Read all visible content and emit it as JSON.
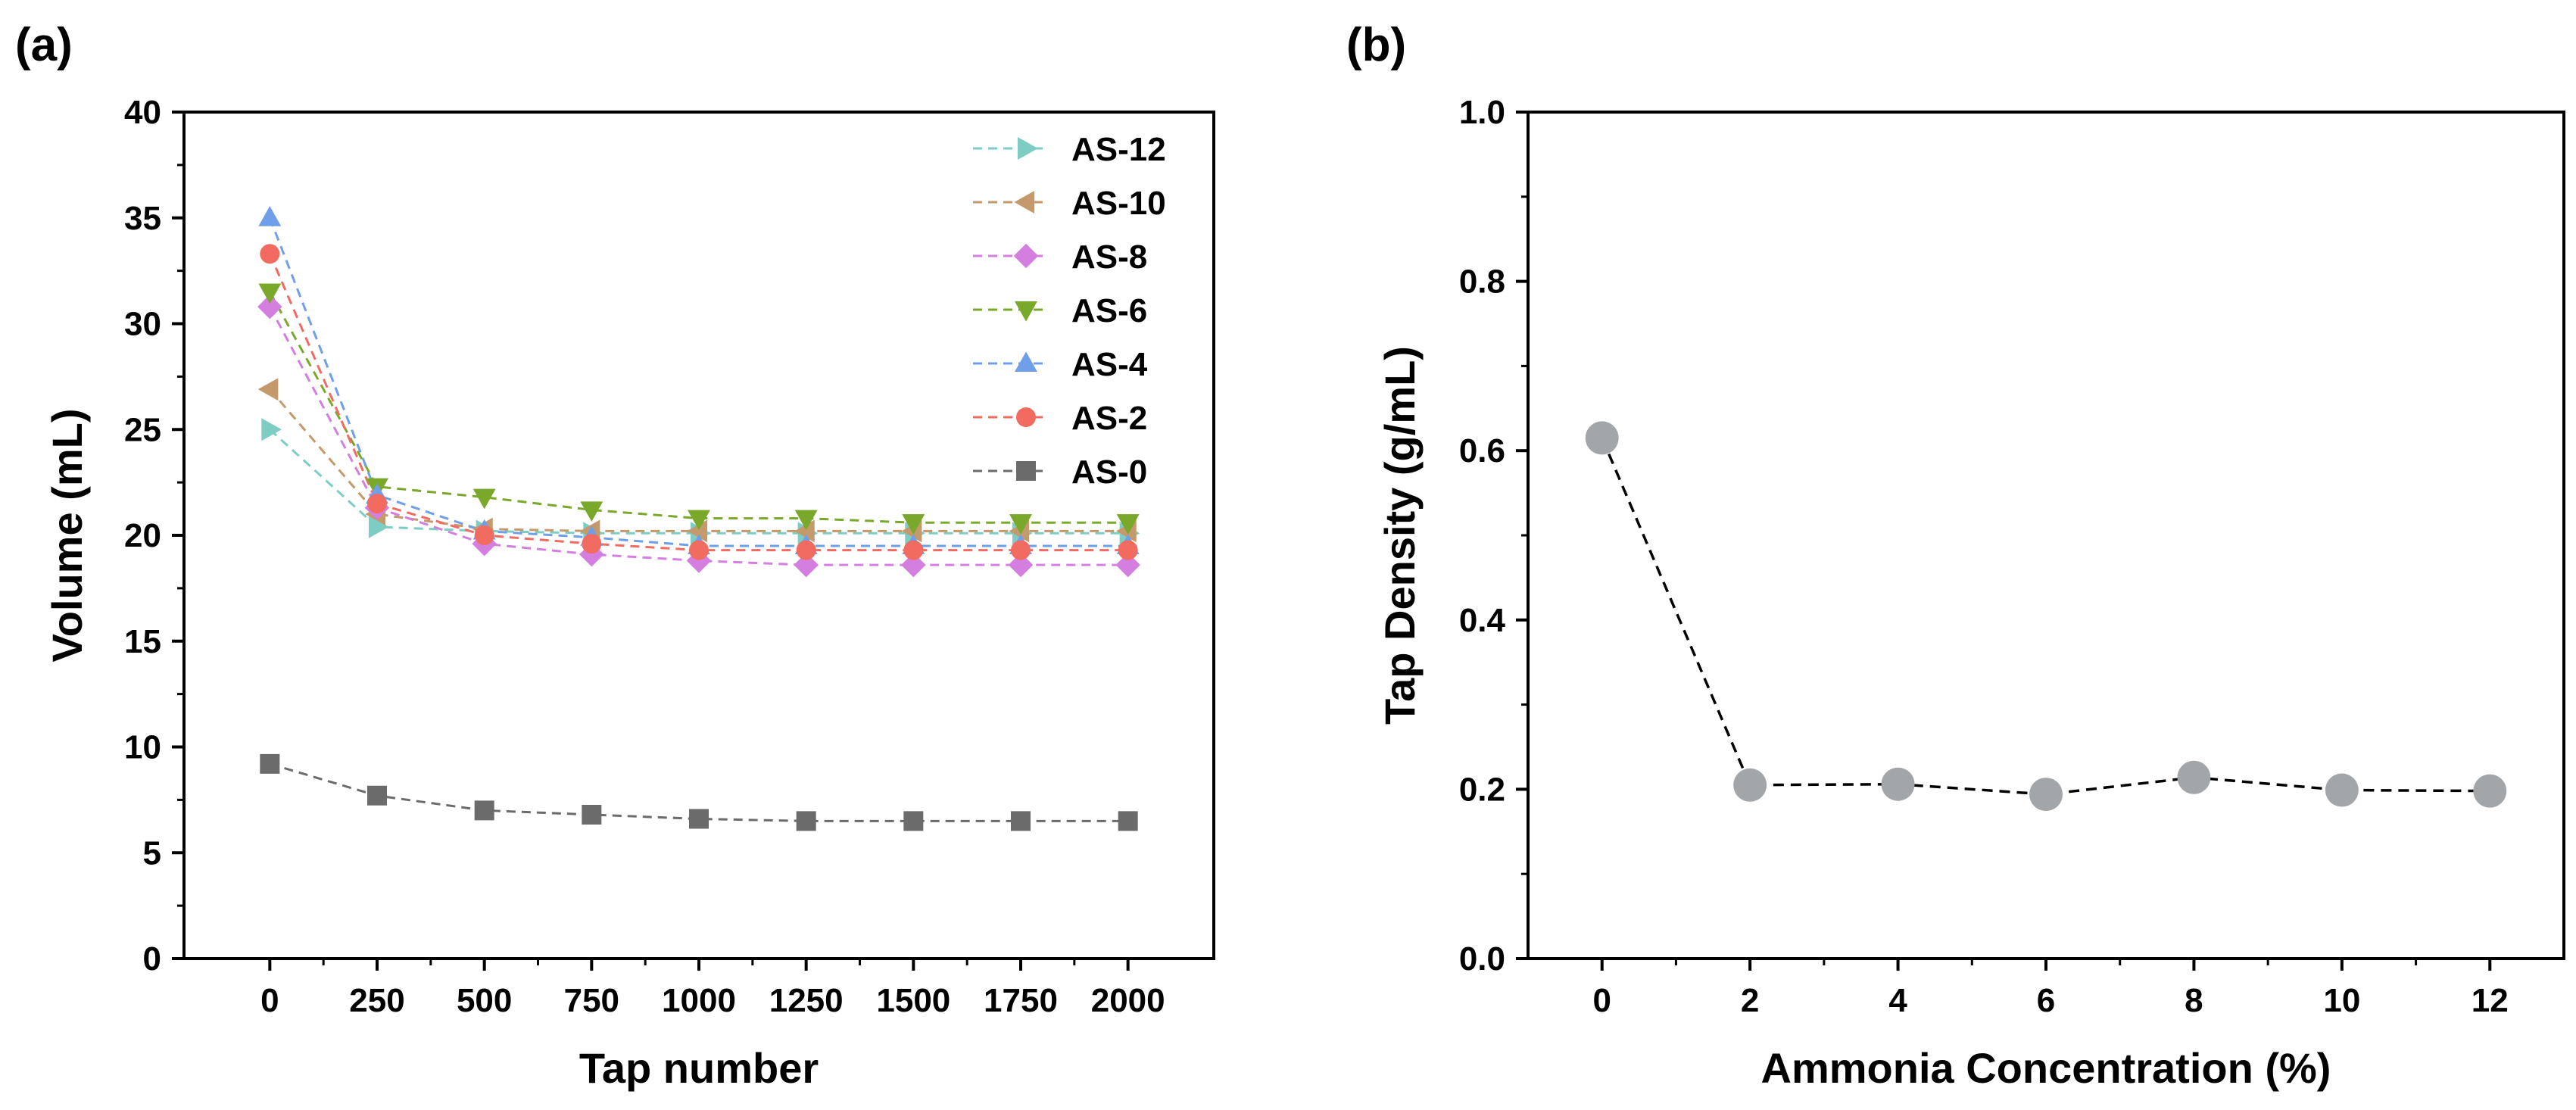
{
  "chart_data": [
    {
      "panel_label": "(a)",
      "type": "line",
      "xlabel": "Tap number",
      "ylabel": "Volume (mL)",
      "xlim": [
        -200,
        2200
      ],
      "ylim": [
        0,
        40
      ],
      "x_ticks": [
        0,
        250,
        500,
        750,
        1000,
        1250,
        1500,
        1750,
        2000
      ],
      "y_ticks": [
        0,
        5,
        10,
        15,
        20,
        25,
        30,
        35,
        40
      ],
      "x": [
        0,
        250,
        500,
        750,
        1000,
        1250,
        1500,
        1750,
        2000
      ],
      "legend_position": "top-right",
      "series": [
        {
          "name": "AS-12",
          "marker": "triangle-right",
          "color": "#7ecdc4",
          "values": [
            25.0,
            20.4,
            20.2,
            20.1,
            20.1,
            20.1,
            20.1,
            20.1,
            20.1
          ]
        },
        {
          "name": "AS-10",
          "marker": "triangle-left",
          "color": "#c49a6c",
          "values": [
            26.9,
            21.0,
            20.3,
            20.2,
            20.2,
            20.2,
            20.2,
            20.2,
            20.2
          ]
        },
        {
          "name": "AS-8",
          "marker": "diamond",
          "color": "#d47fe0",
          "values": [
            30.8,
            21.3,
            19.6,
            19.1,
            18.8,
            18.6,
            18.6,
            18.6,
            18.6
          ]
        },
        {
          "name": "AS-6",
          "marker": "triangle-down",
          "color": "#7aa82a",
          "values": [
            31.5,
            22.3,
            21.8,
            21.2,
            20.8,
            20.8,
            20.6,
            20.6,
            20.6
          ]
        },
        {
          "name": "AS-4",
          "marker": "triangle-up",
          "color": "#6f9fe8",
          "values": [
            35.0,
            21.9,
            20.2,
            19.9,
            19.5,
            19.5,
            19.5,
            19.5,
            19.5
          ]
        },
        {
          "name": "AS-2",
          "marker": "circle",
          "color": "#f26b61",
          "values": [
            33.3,
            21.5,
            20.0,
            19.6,
            19.3,
            19.3,
            19.3,
            19.3,
            19.3
          ]
        },
        {
          "name": "AS-0",
          "marker": "square",
          "color": "#6b6b6b",
          "values": [
            9.2,
            7.7,
            7.0,
            6.8,
            6.6,
            6.5,
            6.5,
            6.5,
            6.5
          ]
        }
      ]
    },
    {
      "panel_label": "(b)",
      "type": "line",
      "xlabel": "Ammonia Concentration (%)",
      "ylabel": "Tap Density (g/mL)",
      "xlim": [
        -1,
        13
      ],
      "ylim": [
        0.0,
        1.0
      ],
      "x_ticks": [
        0,
        2,
        4,
        6,
        8,
        10,
        12
      ],
      "y_ticks": [
        0.0,
        0.2,
        0.4,
        0.6,
        0.8,
        1.0
      ],
      "y_tick_labels": [
        "0.0",
        "0.2",
        "0.4",
        "0.6",
        "0.8",
        "1.0"
      ],
      "series": [
        {
          "name": "Tap Density",
          "marker": "circle",
          "color": "#a3a6a8",
          "line_color": "#000000",
          "x": [
            0,
            2,
            4,
            6,
            8,
            10,
            12
          ],
          "values": [
            0.615,
            0.205,
            0.206,
            0.194,
            0.214,
            0.199,
            0.198
          ]
        }
      ]
    }
  ]
}
